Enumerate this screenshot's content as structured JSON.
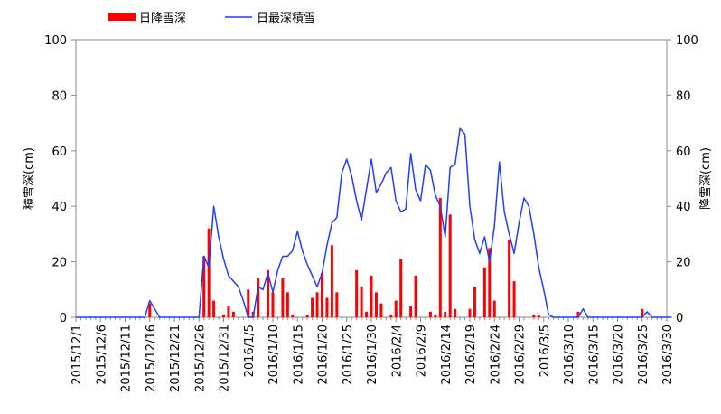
{
  "chart_data": {
    "type": "bar+line",
    "x_categories_start": "2015/12/1",
    "x_tick_labels": [
      "2015/12/1",
      "2015/12/6",
      "2015/12/11",
      "2015/12/16",
      "2015/12/21",
      "2015/12/26",
      "2015/12/31",
      "2016/1/5",
      "2016/1/10",
      "2016/1/15",
      "2016/1/20",
      "2016/1/25",
      "2016/1/30",
      "2016/2/4",
      "2016/2/9",
      "2016/2/14",
      "2016/2/19",
      "2016/2/24",
      "2016/2/29",
      "2016/3/5",
      "2016/3/10",
      "2016/3/15",
      "2016/3/20",
      "2016/3/25",
      "2016/3/30"
    ],
    "ylabel_left": "積雪深(cm)",
    "ylabel_right": "降雪深(cm)",
    "ylim": [
      0,
      100
    ],
    "y_ticks": [
      "0",
      "20",
      "40",
      "60",
      "80",
      "100"
    ],
    "grid": false,
    "legend_position": "top-left",
    "series": [
      {
        "name": "日降雪深",
        "type": "bar",
        "axis": "right",
        "color": "#ff0000",
        "values": [
          0,
          0,
          0,
          0,
          0,
          0,
          0,
          0,
          0,
          0,
          0,
          0,
          0,
          0,
          0,
          5,
          0,
          0,
          0,
          0,
          0,
          0,
          0,
          0,
          0,
          0,
          22,
          32,
          6,
          0,
          1,
          4,
          2,
          0,
          0,
          10,
          2,
          14,
          0,
          17,
          9,
          0,
          14,
          9,
          1,
          0,
          0,
          1,
          7,
          9,
          16,
          7,
          26,
          9,
          0,
          0,
          0,
          17,
          11,
          2,
          15,
          9,
          5,
          0,
          1,
          6,
          21,
          0,
          4,
          15,
          0,
          0,
          2,
          1,
          43,
          2,
          37,
          3,
          0,
          0,
          3,
          11,
          0,
          18,
          25,
          6,
          0,
          0,
          28,
          13,
          0,
          0,
          0,
          1,
          1,
          0,
          0,
          0,
          0,
          0,
          0,
          0,
          2,
          0,
          0,
          0,
          0,
          0,
          0,
          0,
          0,
          0,
          0,
          0,
          0,
          3,
          0,
          0,
          0,
          0,
          0
        ]
      },
      {
        "name": "日最深積雪",
        "type": "line",
        "axis": "left",
        "color": "#1f3fff",
        "values": [
          0,
          0,
          0,
          0,
          0,
          0,
          0,
          0,
          0,
          0,
          0,
          0,
          0,
          0,
          0,
          6,
          3,
          0,
          0,
          0,
          0,
          0,
          0,
          0,
          0,
          0,
          22,
          18,
          40,
          29,
          21,
          15,
          13,
          11,
          6,
          0,
          0,
          11,
          10,
          16,
          9,
          17,
          22,
          22,
          24,
          31,
          24,
          19,
          15,
          11,
          16,
          26,
          34,
          36,
          52,
          57,
          51,
          42,
          35,
          46,
          57,
          45,
          48,
          52,
          54,
          42,
          38,
          39,
          59,
          46,
          42,
          55,
          53,
          44,
          40,
          29,
          54,
          55,
          68,
          66,
          40,
          28,
          23,
          29,
          20,
          33,
          56,
          38,
          30,
          23,
          34,
          43,
          40,
          30,
          18,
          10,
          1,
          0,
          0,
          0,
          0,
          0,
          0,
          3,
          0,
          0,
          0,
          0,
          0,
          0,
          0,
          0,
          0,
          0,
          0,
          0,
          2,
          0,
          0,
          0,
          0,
          0
        ]
      }
    ]
  }
}
